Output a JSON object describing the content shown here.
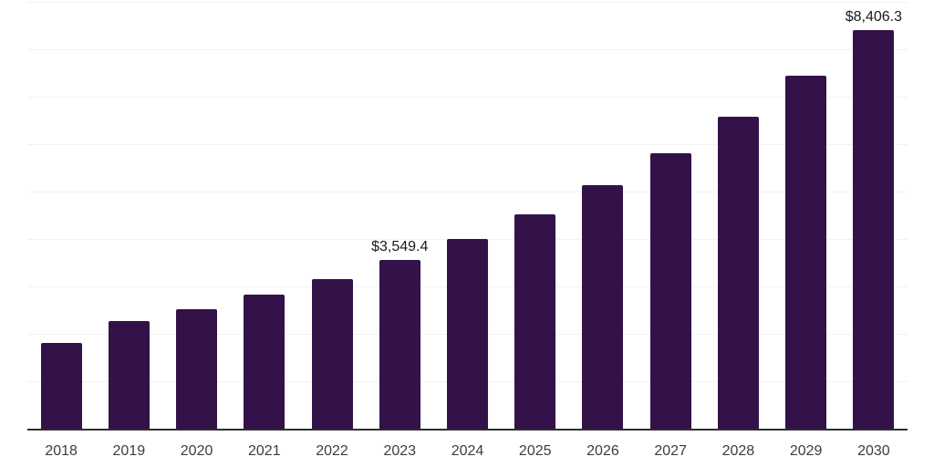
{
  "chart": {
    "background_color": "#ffffff",
    "bar_color": "#331249",
    "axis_line_color": "#2e2e2e",
    "gridline_color": "#f2f2f2",
    "x_label_color": "#3d3d3d",
    "value_label_color": "#1a1a1a"
  },
  "chart_data": {
    "type": "bar",
    "title": "",
    "xlabel": "",
    "ylabel": "",
    "categories": [
      "2018",
      "2019",
      "2020",
      "2021",
      "2022",
      "2023",
      "2024",
      "2025",
      "2026",
      "2027",
      "2028",
      "2029",
      "2030"
    ],
    "values": [
      1810,
      2275,
      2515,
      2825,
      3160,
      3549.4,
      4000,
      4520,
      5135,
      5805,
      6570,
      7445,
      8406.3
    ],
    "data_labels": {
      "2023": "$3,549.4",
      "2030": "$8,406.3"
    },
    "ylim": [
      0,
      9000
    ],
    "gridline_step": 1000,
    "grid": true,
    "legend": false,
    "y_axis_labels_visible": false
  }
}
